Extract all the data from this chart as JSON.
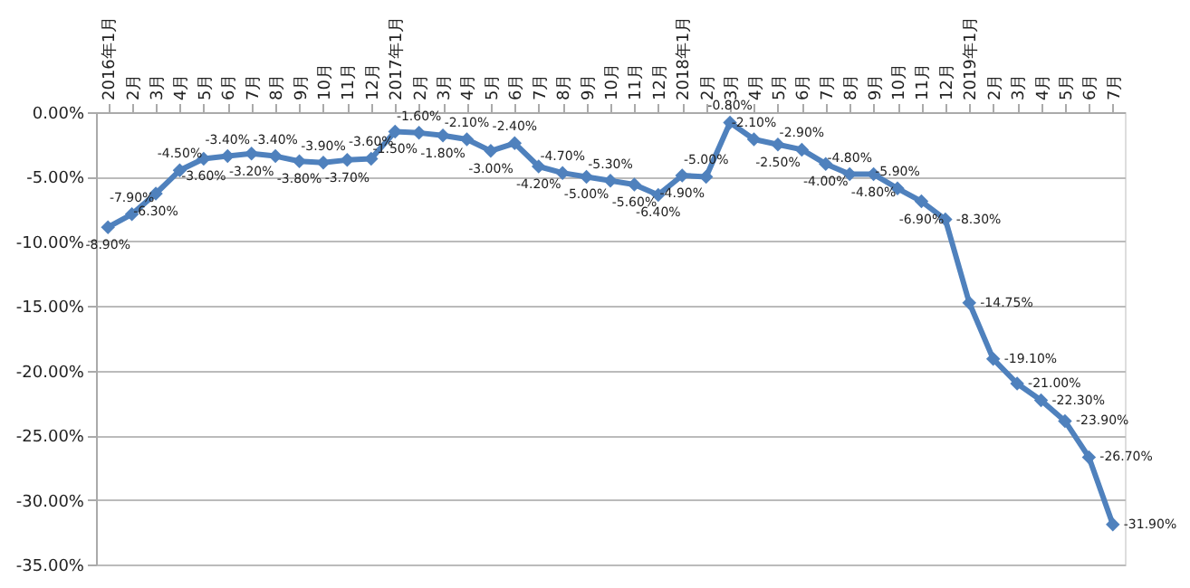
{
  "chart_data": {
    "type": "line",
    "categories": [
      "2016年1月",
      "2月",
      "3月",
      "4月",
      "5月",
      "6月",
      "7月",
      "8月",
      "9月",
      "10月",
      "11月",
      "12月",
      "2017年1月",
      "2月",
      "3月",
      "4月",
      "5月",
      "6月",
      "7月",
      "8月",
      "9月",
      "10月",
      "11月",
      "12月",
      "2018年1月",
      "2月",
      "3月",
      "4月",
      "5月",
      "6月",
      "7月",
      "8月",
      "9月",
      "10月",
      "11月",
      "12月",
      "2019年1月",
      "2月",
      "3月",
      "4月",
      "5月",
      "6月",
      "7月"
    ],
    "series": [
      {
        "color": "#4f81bd",
        "values": [
          -8.9,
          -7.9,
          -6.3,
          -4.5,
          -3.6,
          -3.4,
          -3.2,
          -3.4,
          -3.8,
          -3.9,
          -3.7,
          -3.6,
          -1.5,
          -1.6,
          -1.8,
          -2.1,
          -3.0,
          -2.4,
          -4.2,
          -4.7,
          -5.0,
          -5.3,
          -5.6,
          -6.4,
          -4.9,
          -5.0,
          -0.8,
          -2.1,
          -2.5,
          -2.9,
          -4.0,
          -4.8,
          -4.8,
          -5.9,
          -6.9,
          -8.3,
          -14.75,
          -19.1,
          -21.0,
          -22.3,
          -23.9,
          -26.7,
          -31.9
        ],
        "value_labels": [
          "-8.90%",
          "-7.90%",
          "-6.30%",
          "-4.50%",
          "-3.60%",
          "-3.40%",
          "-3.20%",
          "-3.40%",
          "-3.80%",
          "-3.90%",
          "-3.70%",
          "-3.60%",
          "-1.50%",
          "-1.60%",
          "-1.80%",
          "-2.10%",
          "-3.00%",
          "-2.40%",
          "-4.20%",
          "-4.70%",
          "-5.00%",
          "-5.30%",
          "-5.60%",
          "-6.40%",
          "-4.90%",
          "-5.00%",
          "-0.80%",
          "-2.10%",
          "-2.50%",
          "-2.90%",
          "-4.00%",
          "-4.80%",
          "-4.80%",
          "-5.90%",
          "-6.90%",
          "-8.30%",
          "-14.75%",
          "-19.10%",
          "-21.00%",
          "-22.30%",
          "-23.90%",
          "-26.70%",
          "-31.90%"
        ]
      }
    ],
    "ylim": [
      -35,
      0
    ],
    "yticks": [
      {
        "value": 0,
        "label": "0.00%"
      },
      {
        "value": -5,
        "label": "-5.00%"
      },
      {
        "value": -10,
        "label": "-10.00%"
      },
      {
        "value": -15,
        "label": "-15.00%"
      },
      {
        "value": -20,
        "label": "-20.00%"
      },
      {
        "value": -25,
        "label": "-25.00%"
      },
      {
        "value": -30,
        "label": "-30.00%"
      },
      {
        "value": -35,
        "label": "-35.00%"
      }
    ],
    "grid": "y",
    "marker": "diamond"
  }
}
